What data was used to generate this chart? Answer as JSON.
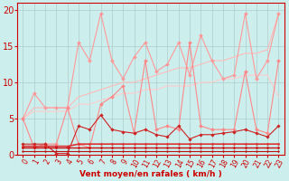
{
  "title": "",
  "xlabel": "Vent moyen/en rafales ( km/h )",
  "bg_color": "#cceeed",
  "grid_color": "#b0cccc",
  "xlim": [
    -0.5,
    23.5
  ],
  "ylim": [
    0,
    21
  ],
  "x": [
    0,
    1,
    2,
    3,
    4,
    5,
    6,
    7,
    8,
    9,
    10,
    11,
    12,
    13,
    14,
    15,
    16,
    17,
    18,
    19,
    20,
    21,
    22,
    23
  ],
  "series": [
    {
      "y": [
        5.0,
        8.5,
        6.5,
        6.5,
        6.5,
        15.5,
        13.0,
        19.5,
        13.0,
        10.5,
        13.5,
        15.5,
        11.5,
        12.5,
        15.5,
        11.0,
        16.5,
        13.0,
        10.5,
        11.0,
        19.5,
        10.5,
        13.0,
        19.5
      ],
      "color": "#ff9999",
      "lw": 0.8,
      "marker": "D",
      "ms": 2.0,
      "zorder": 3
    },
    {
      "y": [
        5.0,
        6.5,
        6.5,
        6.5,
        6.5,
        8.0,
        8.5,
        9.0,
        9.5,
        10.0,
        10.0,
        10.5,
        11.0,
        11.5,
        12.0,
        12.0,
        12.5,
        13.0,
        13.0,
        13.5,
        14.0,
        14.0,
        14.5,
        19.5
      ],
      "color": "#ffbbbb",
      "lw": 0.8,
      "marker": null,
      "ms": 0,
      "zorder": 2
    },
    {
      "y": [
        5.0,
        6.0,
        6.0,
        6.0,
        6.0,
        7.0,
        7.0,
        7.5,
        8.0,
        8.5,
        8.5,
        9.0,
        9.0,
        9.5,
        9.5,
        9.5,
        10.0,
        10.0,
        10.5,
        10.5,
        11.0,
        11.0,
        11.0,
        8.0
      ],
      "color": "#ffcccc",
      "lw": 0.8,
      "marker": null,
      "ms": 0,
      "zorder": 2
    },
    {
      "y": [
        5.0,
        1.0,
        1.5,
        1.5,
        6.5,
        1.5,
        1.0,
        7.0,
        8.0,
        9.5,
        3.0,
        13.0,
        3.5,
        4.0,
        3.5,
        15.5,
        4.0,
        3.5,
        3.5,
        3.5,
        11.5,
        3.5,
        3.0,
        13.0
      ],
      "color": "#ff8888",
      "lw": 0.8,
      "marker": "D",
      "ms": 2.0,
      "zorder": 3
    },
    {
      "y": [
        1.5,
        1.5,
        1.5,
        0.2,
        0.2,
        4.0,
        3.5,
        5.5,
        3.5,
        3.2,
        3.0,
        3.5,
        2.8,
        2.5,
        4.0,
        2.2,
        2.8,
        2.8,
        3.0,
        3.2,
        3.5,
        3.0,
        2.5,
        4.0
      ],
      "color": "#cc2222",
      "lw": 0.8,
      "marker": "D",
      "ms": 1.8,
      "zorder": 4
    },
    {
      "y": [
        1.2,
        1.2,
        1.2,
        1.2,
        1.2,
        1.5,
        1.5,
        1.5,
        1.5,
        1.5,
        1.5,
        1.5,
        1.5,
        1.5,
        1.5,
        1.5,
        1.5,
        1.5,
        1.5,
        1.5,
        1.5,
        1.5,
        1.5,
        1.5
      ],
      "color": "#dd3333",
      "lw": 1.2,
      "marker": "D",
      "ms": 1.5,
      "zorder": 4
    },
    {
      "y": [
        1.0,
        1.0,
        1.0,
        1.0,
        1.0,
        1.0,
        1.0,
        1.0,
        1.0,
        1.0,
        1.0,
        1.0,
        1.0,
        1.0,
        1.0,
        1.0,
        1.0,
        1.0,
        1.0,
        1.0,
        1.0,
        1.0,
        1.0,
        1.0
      ],
      "color": "#cc1111",
      "lw": 1.0,
      "marker": "D",
      "ms": 1.5,
      "zorder": 4
    },
    {
      "y": [
        0.5,
        0.5,
        0.5,
        0.5,
        0.5,
        0.5,
        0.5,
        0.5,
        0.5,
        0.5,
        0.5,
        0.5,
        0.5,
        0.5,
        0.5,
        0.5,
        0.5,
        0.5,
        0.5,
        0.5,
        0.5,
        0.5,
        0.5,
        0.5
      ],
      "color": "#bb1111",
      "lw": 0.8,
      "marker": "D",
      "ms": 1.2,
      "zorder": 4
    }
  ],
  "ytick_vals": [
    0,
    5,
    10,
    15,
    20
  ],
  "xlabel_color": "#cc0000",
  "tick_color": "#cc0000",
  "label_fontsize": 6.5,
  "tick_fontsize": 5.5
}
